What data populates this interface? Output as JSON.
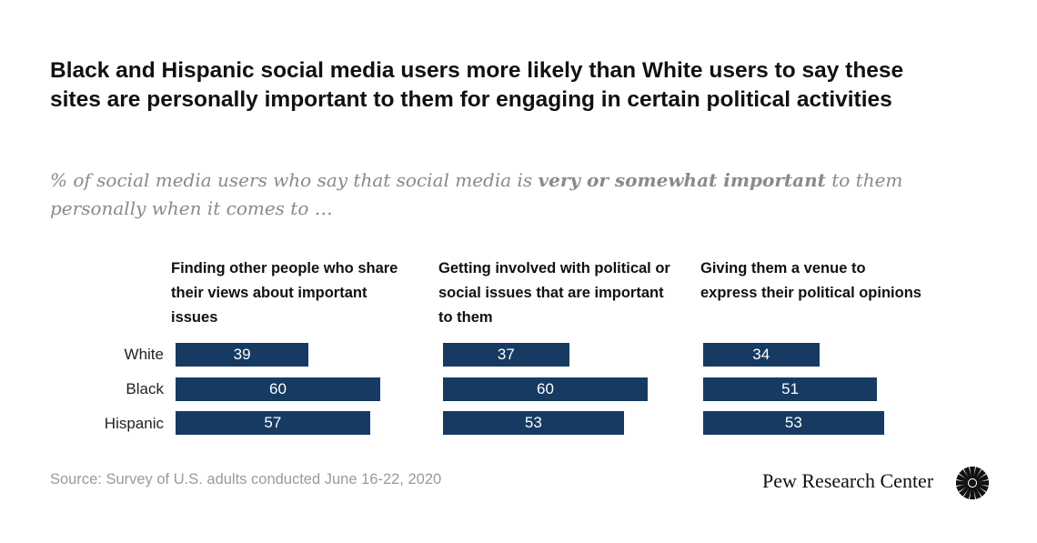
{
  "chart_data": {
    "type": "bar",
    "orientation": "horizontal",
    "title": "Black and Hispanic social media users more likely than White users to say these sites are personally important to them for engaging in certain political activities",
    "subtitle_prefix": "% of social media users who say that social media is ",
    "subtitle_bold": "very or somewhat important",
    "subtitle_suffix": " to them personally when it comes to …",
    "categories": [
      "White",
      "Black",
      "Hispanic"
    ],
    "panels": [
      {
        "name": "Finding other people who share their views about important issues",
        "values": [
          39,
          60,
          57
        ]
      },
      {
        "name": "Getting involved with political or social issues that are important to them",
        "values": [
          37,
          60,
          53
        ]
      },
      {
        "name": "Giving them a venue to express their political opinions",
        "values": [
          34,
          51,
          53
        ]
      }
    ],
    "xlim": [
      0,
      100
    ],
    "bar_color": "#173a62",
    "source": "Source: Survey of U.S. adults conducted June 16-22, 2020",
    "logo": "Pew Research Center"
  }
}
